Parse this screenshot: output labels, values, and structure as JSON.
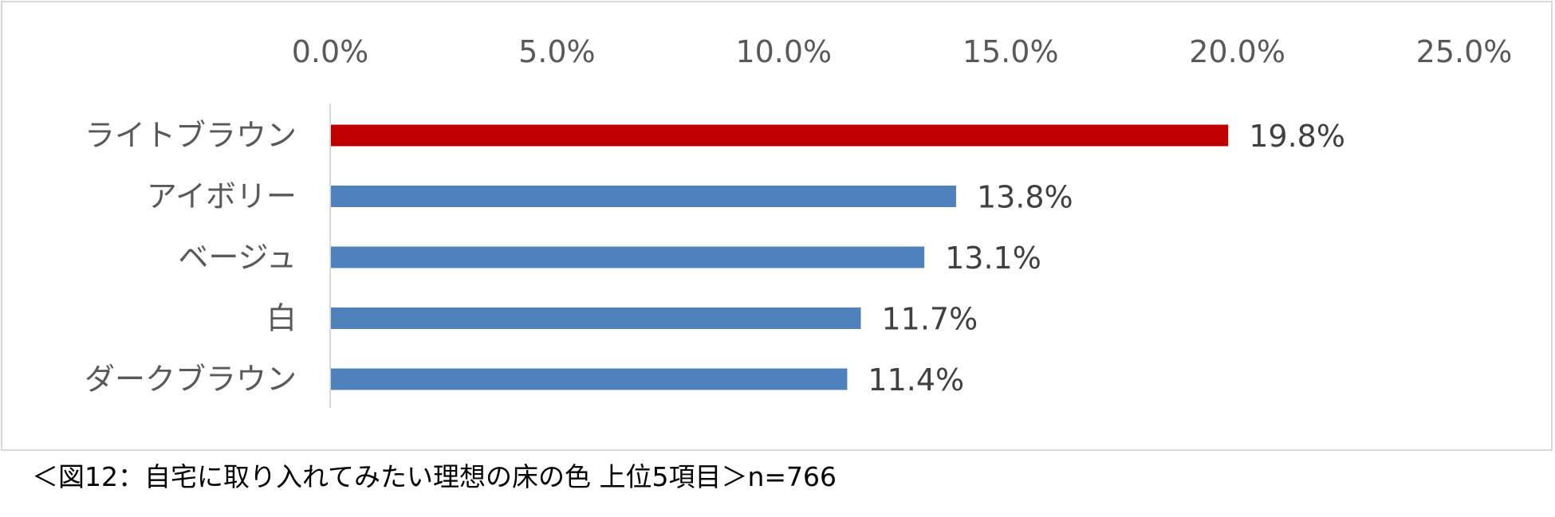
{
  "chart_data": {
    "type": "bar",
    "orientation": "horizontal",
    "categories": [
      "ライトブラウン",
      "アイボリー",
      "ベージュ",
      "白",
      "ダークブラウン"
    ],
    "values": [
      19.8,
      13.8,
      13.1,
      11.7,
      11.4
    ],
    "data_labels": [
      "19.8%",
      "13.8%",
      "13.1%",
      "11.7%",
      "11.4%"
    ],
    "xlim": [
      0,
      25
    ],
    "x_ticks": [
      0,
      5,
      10,
      15,
      20,
      25
    ],
    "x_tick_labels": [
      "0.0%",
      "5.0%",
      "10.0%",
      "15.0%",
      "20.0%",
      "25.0%"
    ],
    "axis_position": "top",
    "grid": false,
    "colors": {
      "highlight": "#c00000",
      "default": "#4f81bd"
    },
    "highlight_index": 0
  },
  "caption": "＜図12：自宅に取り入れてみたい理想の床の色 上位5項目＞n=766"
}
